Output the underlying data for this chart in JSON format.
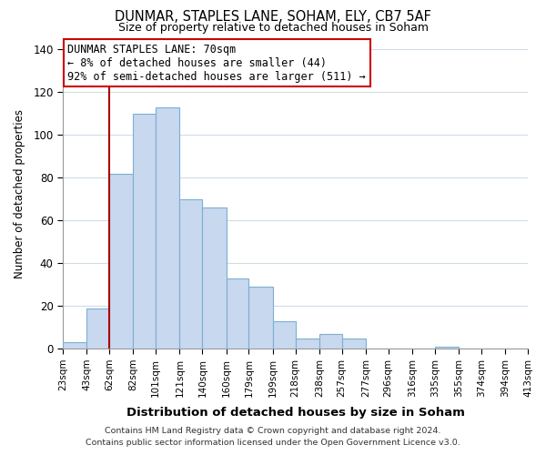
{
  "title": "DUNMAR, STAPLES LANE, SOHAM, ELY, CB7 5AF",
  "subtitle": "Size of property relative to detached houses in Soham",
  "xlabel": "Distribution of detached houses by size in Soham",
  "ylabel": "Number of detached properties",
  "bar_values": [
    3,
    19,
    82,
    110,
    113,
    70,
    66,
    33,
    29,
    13,
    5,
    7,
    5,
    0,
    0,
    0,
    1,
    0,
    0,
    0
  ],
  "bar_labels": [
    "23sqm",
    "43sqm",
    "62sqm",
    "82sqm",
    "101sqm",
    "121sqm",
    "140sqm",
    "160sqm",
    "179sqm",
    "199sqm",
    "218sqm",
    "238sqm",
    "257sqm",
    "277sqm",
    "296sqm",
    "316sqm",
    "335sqm",
    "355sqm",
    "374sqm",
    "394sqm",
    "413sqm"
  ],
  "bar_color": "#c8d8ee",
  "bar_edge_color": "#7bafd4",
  "ylim": [
    0,
    145
  ],
  "yticks": [
    0,
    20,
    40,
    60,
    80,
    100,
    120,
    140
  ],
  "vline_color": "#aa0000",
  "annotation_title": "DUNMAR STAPLES LANE: 70sqm",
  "annotation_line1": "← 8% of detached houses are smaller (44)",
  "annotation_line2": "92% of semi-detached houses are larger (511) →",
  "annotation_box_color": "#ffffff",
  "annotation_box_edge": "#cc0000",
  "footer_line1": "Contains HM Land Registry data © Crown copyright and database right 2024.",
  "footer_line2": "Contains public sector information licensed under the Open Government Licence v3.0.",
  "background_color": "#ffffff",
  "grid_color": "#d0dce8"
}
